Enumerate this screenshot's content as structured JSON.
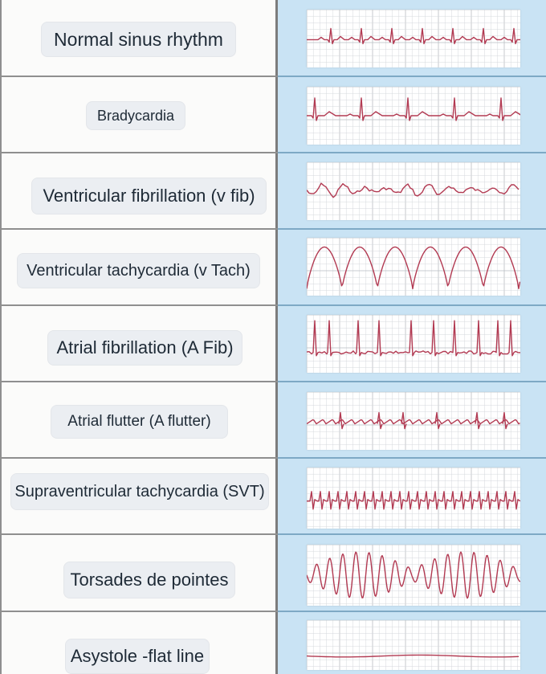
{
  "rows": [
    {
      "label": "Normal sinus rhythm",
      "waveform": "normal-sinus"
    },
    {
      "label": "Bradycardia",
      "waveform": "bradycardia"
    },
    {
      "label": "Ventricular fibrillation (v fib)",
      "waveform": "v-fib"
    },
    {
      "label": "Ventricular tachycardia (v Tach)",
      "waveform": "v-tach"
    },
    {
      "label": "Atrial fibrillation (A Fib)",
      "waveform": "a-fib"
    },
    {
      "label": "Atrial flutter (A flutter)",
      "waveform": "a-flutter"
    },
    {
      "label": "Supraventricular tachycardia (SVT)",
      "waveform": "svt"
    },
    {
      "label": "Torsades de pointes",
      "waveform": "torsades"
    },
    {
      "label": "Asystole -flat line",
      "waveform": "asystole"
    }
  ],
  "colors": {
    "trace": "#b23a52",
    "grid_minor": "#d5d8dc",
    "grid_major": "#b9bdc2",
    "panel_blue": "#c9e3f4",
    "label_bg": "#ebeef2"
  }
}
